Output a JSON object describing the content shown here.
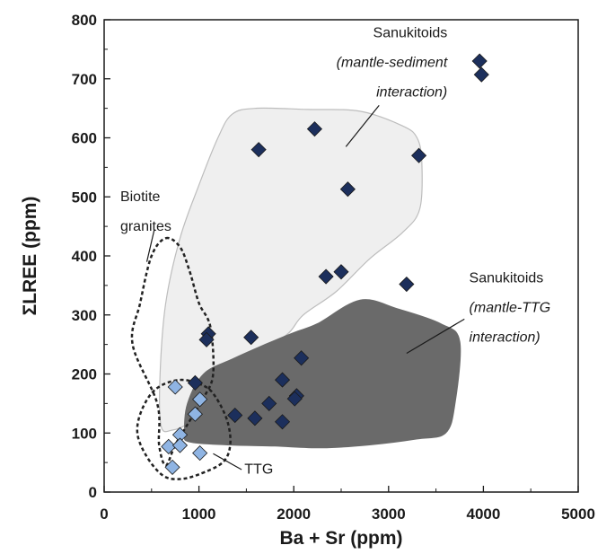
{
  "chart_data": {
    "type": "scatter",
    "title": "",
    "xlabel": "Ba + Sr (ppm)",
    "ylabel": "ΣLREE (ppm)",
    "xlim": [
      0,
      5000
    ],
    "ylim": [
      0,
      800
    ],
    "xticks": [
      0,
      1000,
      2000,
      3000,
      4000,
      5000
    ],
    "yticks": [
      0,
      100,
      200,
      300,
      400,
      500,
      600,
      700,
      800
    ],
    "xtick_labels": [
      "0",
      "1000",
      "2000",
      "3000",
      "4000",
      "5000"
    ],
    "ytick_labels": [
      "0",
      "100",
      "200",
      "300",
      "400",
      "500",
      "600",
      "700",
      "800"
    ],
    "grid": false,
    "series": [
      {
        "marker": "diamond",
        "color": "#1c2f5c",
        "points": [
          [
            3960,
            730
          ],
          [
            3980,
            707
          ],
          [
            2220,
            615
          ],
          [
            1630,
            580
          ],
          [
            3320,
            570
          ],
          [
            2570,
            513
          ],
          [
            2340,
            365
          ],
          [
            2500,
            373
          ],
          [
            3190,
            352
          ],
          [
            1100,
            268
          ],
          [
            1080,
            258
          ],
          [
            1550,
            262
          ],
          [
            960,
            185
          ],
          [
            2080,
            227
          ],
          [
            1880,
            190
          ],
          [
            2030,
            163
          ],
          [
            2010,
            158
          ],
          [
            1380,
            130
          ],
          [
            1590,
            125
          ],
          [
            1740,
            150
          ],
          [
            1880,
            119
          ]
        ]
      },
      {
        "marker": "diamond",
        "color": "#8fb4e3",
        "points": [
          [
            750,
            178
          ],
          [
            1010,
            157
          ],
          [
            960,
            132
          ],
          [
            800,
            97
          ],
          [
            680,
            77
          ],
          [
            800,
            79
          ],
          [
            1010,
            66
          ],
          [
            720,
            42
          ]
        ]
      }
    ],
    "regions": [
      {
        "name": "sanukitoids-mantle-sediment",
        "fill": "#efefef",
        "stroke": "#bdbdbd",
        "dashed": false,
        "points": [
          [
            1350,
            640
          ],
          [
            1600,
            650
          ],
          [
            2150,
            648
          ],
          [
            2700,
            645
          ],
          [
            3150,
            620
          ],
          [
            3300,
            600
          ],
          [
            3350,
            560
          ],
          [
            3330,
            480
          ],
          [
            3150,
            440
          ],
          [
            2800,
            395
          ],
          [
            2450,
            340
          ],
          [
            2100,
            300
          ],
          [
            1950,
            270
          ],
          [
            1700,
            240
          ],
          [
            1450,
            200
          ],
          [
            1150,
            160
          ],
          [
            900,
            118
          ],
          [
            720,
            105
          ],
          [
            600,
            112
          ],
          [
            590,
            200
          ],
          [
            650,
            320
          ],
          [
            800,
            430
          ],
          [
            1000,
            520
          ],
          [
            1200,
            600
          ]
        ]
      },
      {
        "name": "sanukitoids-mantle-ttg",
        "fill": "#6a6a6a",
        "stroke": "#6a6a6a",
        "dashed": false,
        "points": [
          [
            2250,
            285
          ],
          [
            2700,
            325
          ],
          [
            3100,
            310
          ],
          [
            3550,
            285
          ],
          [
            3750,
            255
          ],
          [
            3700,
            150
          ],
          [
            3600,
            100
          ],
          [
            3300,
            90
          ],
          [
            2800,
            80
          ],
          [
            2300,
            75
          ],
          [
            1800,
            78
          ],
          [
            1300,
            80
          ],
          [
            900,
            85
          ],
          [
            850,
            100
          ],
          [
            880,
            150
          ],
          [
            1050,
            200
          ],
          [
            1350,
            225
          ],
          [
            1700,
            250
          ],
          [
            2000,
            270
          ]
        ]
      },
      {
        "name": "biotite-granites",
        "fill": "none",
        "stroke": "#222222",
        "dashed": true,
        "points": [
          [
            650,
            430
          ],
          [
            800,
            415
          ],
          [
            900,
            375
          ],
          [
            1000,
            320
          ],
          [
            1120,
            280
          ],
          [
            1150,
            200
          ],
          [
            1050,
            160
          ],
          [
            900,
            120
          ],
          [
            750,
            80
          ],
          [
            650,
            45
          ],
          [
            580,
            80
          ],
          [
            560,
            150
          ],
          [
            300,
            250
          ],
          [
            380,
            320
          ],
          [
            500,
            400
          ]
        ]
      },
      {
        "name": "ttg",
        "fill": "none",
        "stroke": "#222222",
        "dashed": true,
        "points": [
          [
            800,
            190
          ],
          [
            1050,
            180
          ],
          [
            1180,
            160
          ],
          [
            1300,
            120
          ],
          [
            1330,
            80
          ],
          [
            1250,
            50
          ],
          [
            1000,
            30
          ],
          [
            800,
            22
          ],
          [
            620,
            28
          ],
          [
            450,
            60
          ],
          [
            350,
            100
          ],
          [
            400,
            140
          ],
          [
            550,
            175
          ]
        ]
      }
    ],
    "annotations": [
      {
        "lines": [
          {
            "text": "Sanukitoids",
            "italic": false
          },
          {
            "text": "(mantle-sediment",
            "italic": true
          },
          {
            "text": "interaction)",
            "italic": true
          }
        ],
        "anchor": "end",
        "text_x": 3620,
        "text_y": 770,
        "line_step": 33,
        "leader": [
          [
            2900,
            655
          ],
          [
            2550,
            585
          ]
        ]
      },
      {
        "lines": [
          {
            "text": "Sanukitoids",
            "italic": false
          },
          {
            "text": "(mantle-TTG",
            "italic": true
          },
          {
            "text": "interaction)",
            "italic": true
          }
        ],
        "anchor": "start",
        "text_x": 3850,
        "text_y": 355,
        "line_step": 33,
        "leader": [
          [
            3800,
            293
          ],
          [
            3190,
            235
          ]
        ]
      },
      {
        "lines": [
          {
            "text": "Biotite",
            "italic": false
          },
          {
            "text": "granites",
            "italic": false
          }
        ],
        "anchor": "start",
        "text_x": 170,
        "text_y": 493,
        "line_step": 33,
        "leader": [
          [
            530,
            445
          ],
          [
            450,
            390
          ]
        ]
      },
      {
        "lines": [
          {
            "text": "TTG",
            "italic": false
          }
        ],
        "anchor": "start",
        "text_x": 1480,
        "text_y": 31,
        "line_step": 33,
        "leader": [
          [
            1450,
            38
          ],
          [
            1150,
            65
          ]
        ]
      }
    ]
  }
}
